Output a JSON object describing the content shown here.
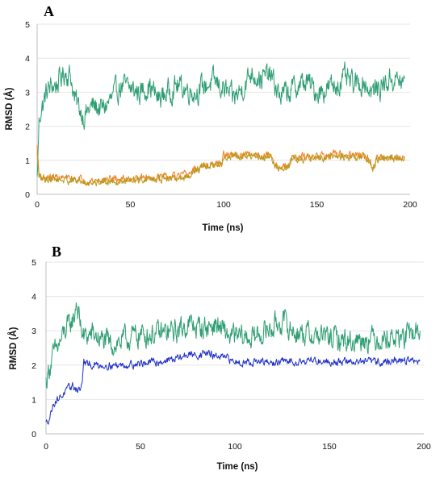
{
  "chart_data": [
    {
      "panel": "A",
      "type": "line",
      "xlabel": "Time (ns)",
      "ylabel": "RMSD (Å)",
      "xlim": [
        0,
        200
      ],
      "ylim": [
        0,
        5
      ],
      "x_ticks": [
        "0",
        "50",
        "100",
        "150",
        "200"
      ],
      "y_ticks": [
        "0",
        "1",
        "2",
        "3",
        "4",
        "5"
      ],
      "grid": true,
      "legend": "none",
      "series": [
        {
          "color": "#2e9e74",
          "x": [
            0,
            1,
            2,
            3,
            5,
            8,
            10,
            15,
            18,
            20,
            25,
            28,
            30,
            35,
            40,
            45,
            50,
            55,
            60,
            65,
            70,
            75,
            80,
            85,
            90,
            95,
            100,
            105,
            110,
            115,
            120,
            125,
            130,
            135,
            140,
            145,
            150,
            155,
            160,
            165,
            170,
            175,
            180,
            185,
            190,
            195,
            197
          ],
          "values": [
            0.4,
            2.1,
            2.5,
            2.6,
            3.0,
            3.2,
            3.2,
            3.6,
            3.5,
            2.8,
            2.3,
            2.5,
            2.6,
            2.5,
            2.8,
            3.2,
            3.1,
            3.0,
            3.2,
            2.8,
            3.0,
            3.2,
            3.1,
            3.0,
            3.2,
            3.3,
            3.1,
            2.8,
            3.1,
            3.6,
            3.4,
            3.5,
            2.9,
            3.0,
            3.2,
            3.3,
            3.0,
            3.1,
            3.2,
            3.4,
            3.2,
            3.3,
            3.0,
            3.2,
            3.4,
            3.3,
            3.2
          ]
        },
        {
          "color": "#f08020",
          "x": [
            0,
            1,
            2,
            5,
            10,
            20,
            30,
            40,
            50,
            60,
            70,
            80,
            85,
            90,
            95,
            99,
            100,
            105,
            110,
            115,
            120,
            125,
            128,
            130,
            135,
            137,
            140,
            145,
            150,
            160,
            170,
            175,
            178,
            180,
            182,
            185,
            190,
            197
          ],
          "values": [
            1.4,
            0.6,
            0.5,
            0.5,
            0.5,
            0.45,
            0.4,
            0.45,
            0.45,
            0.5,
            0.5,
            0.55,
            0.75,
            0.85,
            0.85,
            0.9,
            1.15,
            1.15,
            1.15,
            1.15,
            1.15,
            1.15,
            0.85,
            0.8,
            0.8,
            1.1,
            1.1,
            1.1,
            1.15,
            1.15,
            1.15,
            1.15,
            1.0,
            0.75,
            1.05,
            1.1,
            1.1,
            1.1
          ]
        },
        {
          "color": "#b89a1e",
          "x": [
            0,
            1,
            2,
            5,
            10,
            20,
            30,
            40,
            50,
            60,
            70,
            80,
            85,
            90,
            95,
            99,
            100,
            105,
            110,
            115,
            120,
            125,
            128,
            130,
            135,
            137,
            140,
            145,
            150,
            160,
            170,
            175,
            178,
            180,
            182,
            185,
            190,
            197
          ],
          "values": [
            1.2,
            0.55,
            0.45,
            0.45,
            0.45,
            0.4,
            0.35,
            0.4,
            0.4,
            0.45,
            0.45,
            0.5,
            0.7,
            0.8,
            0.85,
            0.9,
            1.1,
            1.1,
            1.1,
            1.1,
            1.1,
            1.1,
            0.8,
            0.75,
            0.8,
            1.05,
            1.05,
            1.05,
            1.1,
            1.1,
            1.1,
            1.1,
            0.95,
            0.7,
            1.0,
            1.05,
            1.05,
            1.05
          ]
        }
      ]
    },
    {
      "panel": "B",
      "type": "line",
      "xlabel": "Time (ns)",
      "ylabel": "RMSD (Å)",
      "xlim": [
        0,
        200
      ],
      "ylim": [
        0,
        5
      ],
      "x_ticks": [
        "0",
        "50",
        "100",
        "150",
        "200"
      ],
      "y_ticks": [
        "0",
        "1",
        "2",
        "3",
        "4",
        "5"
      ],
      "grid": true,
      "legend": "none",
      "series": [
        {
          "color": "#2e9e74",
          "x": [
            0,
            2,
            5,
            8,
            10,
            12,
            15,
            16,
            18,
            20,
            25,
            30,
            35,
            40,
            50,
            60,
            70,
            75,
            80,
            85,
            90,
            95,
            100,
            110,
            120,
            125,
            130,
            140,
            150,
            160,
            170,
            180,
            190,
            198
          ],
          "values": [
            1.5,
            2.0,
            2.4,
            2.7,
            3.0,
            3.1,
            3.4,
            3.9,
            3.2,
            2.8,
            2.9,
            2.7,
            2.6,
            2.7,
            2.9,
            2.9,
            3.0,
            3.2,
            3.1,
            3.1,
            3.2,
            2.9,
            2.8,
            2.8,
            3.1,
            3.3,
            3.0,
            2.9,
            2.8,
            2.7,
            2.8,
            2.8,
            2.8,
            3.0
          ]
        },
        {
          "color": "#1f2fc8",
          "x": [
            0,
            2,
            4,
            6,
            8,
            10,
            12,
            14,
            16,
            18,
            19,
            20,
            22,
            25,
            30,
            40,
            50,
            60,
            70,
            75,
            80,
            85,
            90,
            95,
            100,
            110,
            120,
            125,
            130,
            140,
            150,
            160,
            170,
            180,
            190,
            198
          ],
          "values": [
            0.3,
            0.5,
            0.9,
            1.0,
            1.1,
            1.2,
            1.3,
            1.4,
            1.3,
            1.3,
            1.4,
            2.1,
            2.0,
            2.0,
            2.0,
            2.0,
            2.05,
            2.1,
            2.2,
            2.3,
            2.3,
            2.35,
            2.25,
            2.2,
            2.1,
            2.1,
            2.05,
            2.1,
            2.1,
            2.15,
            2.1,
            2.1,
            2.1,
            2.1,
            2.15,
            2.1
          ]
        }
      ]
    }
  ]
}
